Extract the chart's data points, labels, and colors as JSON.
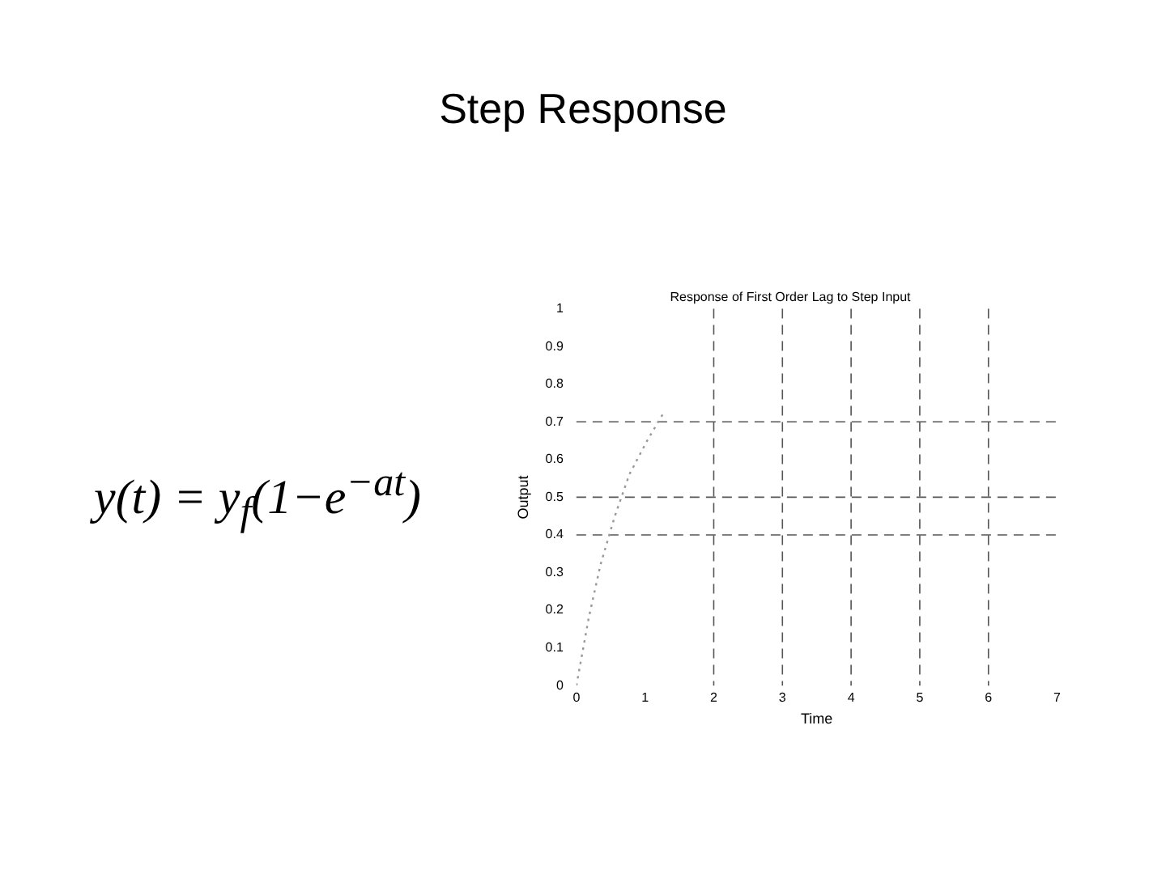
{
  "chart_data": {
    "type": "line",
    "title": "Step Response",
    "subtitle": "Response of First Order Lag to Step Input",
    "xlabel": "Time",
    "ylabel": "Output",
    "annotations": [
      "y(t) = y$_{f}$(1−e$^{−at}$)"
    ],
    "series": [
      {
        "color": "#999999",
        "x": [
          0,
          0.18,
          0.35,
          0.56,
          0.77,
          1.03,
          1.29
        ],
        "values": [
          0,
          0.18,
          0.32,
          0.45,
          0.56,
          0.65,
          0.73
        ]
      }
    ],
    "xlim": [
      0,
      7
    ],
    "xticks": [
      0,
      1,
      2,
      3,
      4,
      5,
      6,
      7
    ],
    "ylim": [
      0,
      1
    ],
    "yticks": [
      0,
      0.1,
      0.2,
      0.3,
      0.4,
      0.5,
      0.6,
      0.7,
      0.8,
      0.9,
      1
    ],
    "ref_lines": [
      {
        "axis": "x",
        "value": 2
      },
      {
        "axis": "x",
        "value": 3
      },
      {
        "axis": "x",
        "value": 4
      },
      {
        "axis": "x",
        "value": 5
      },
      {
        "axis": "x",
        "value": 6
      },
      {
        "axis": "y",
        "value": 0.4
      },
      {
        "axis": "y",
        "value": 0.5
      },
      {
        "axis": "y",
        "value": 0.7
      }
    ],
    "grid": false,
    "legend": false,
    "marker": "none",
    "line_style": "dotted"
  }
}
